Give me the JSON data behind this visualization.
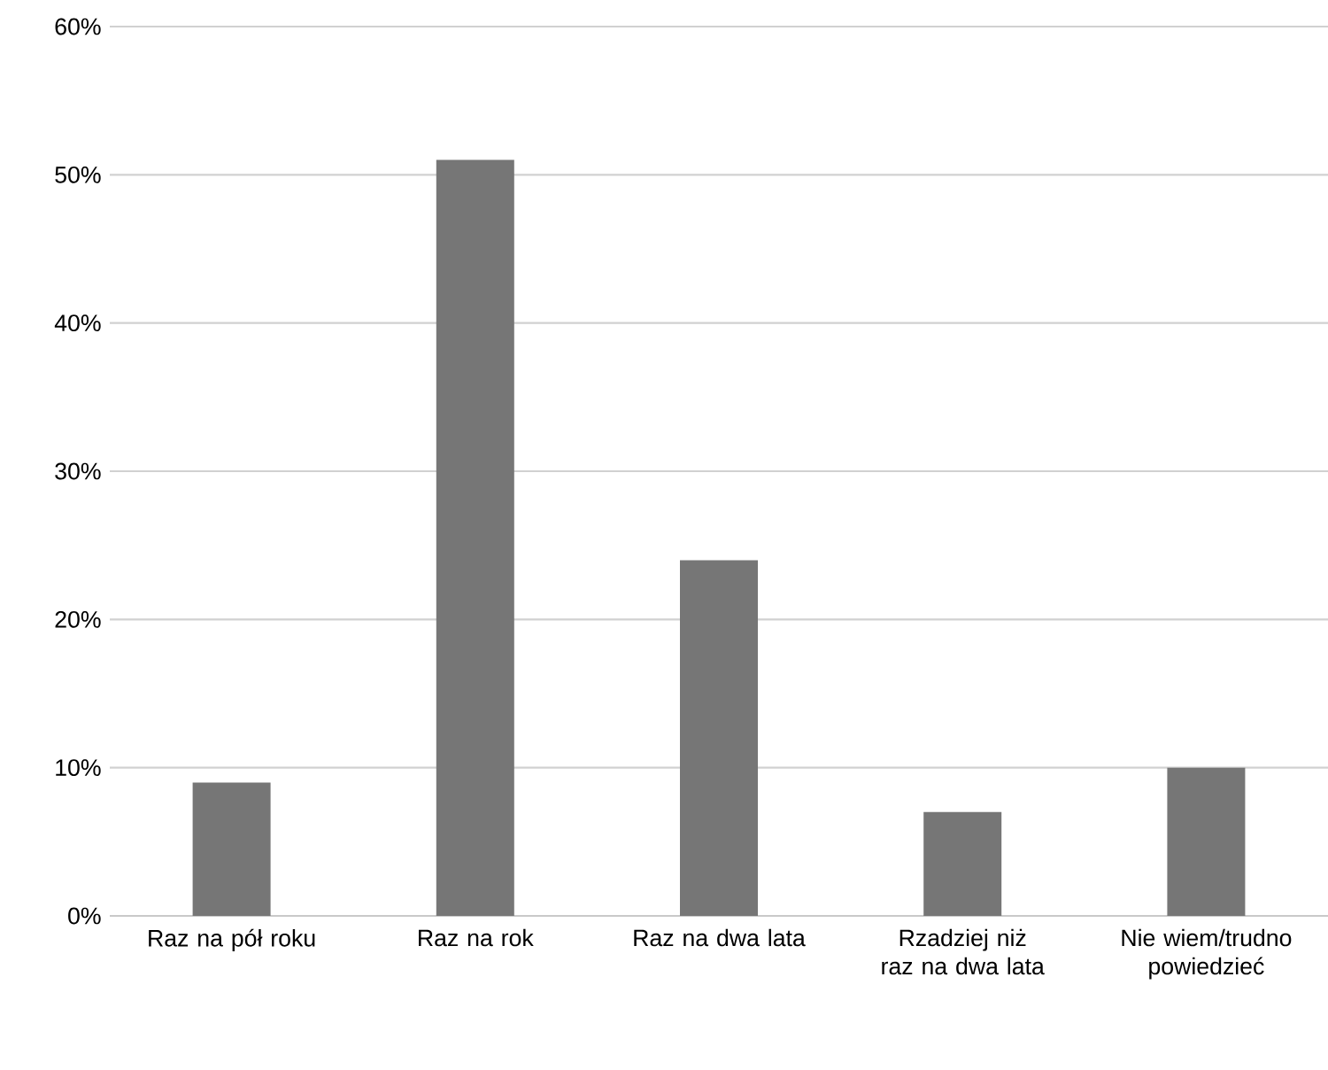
{
  "chart_data": {
    "type": "bar",
    "categories": [
      "Raz na pół roku",
      "Raz na rok",
      "Raz na dwa lata",
      "Rzadziej niż raz na dwa lata",
      "Nie wiem/trudno powiedzieć"
    ],
    "values": [
      9,
      51,
      24,
      7,
      10
    ],
    "color": "#767676",
    "ylim": [
      0,
      60
    ],
    "yticks": [
      {
        "value": 0,
        "label": "0%"
      },
      {
        "value": 10,
        "label": "10%"
      },
      {
        "value": 20,
        "label": "20%"
      },
      {
        "value": 30,
        "label": "30%"
      },
      {
        "value": 40,
        "label": "40%"
      },
      {
        "value": 50,
        "label": "50%"
      },
      {
        "value": 60,
        "label": "60%"
      }
    ],
    "grid": "y"
  }
}
